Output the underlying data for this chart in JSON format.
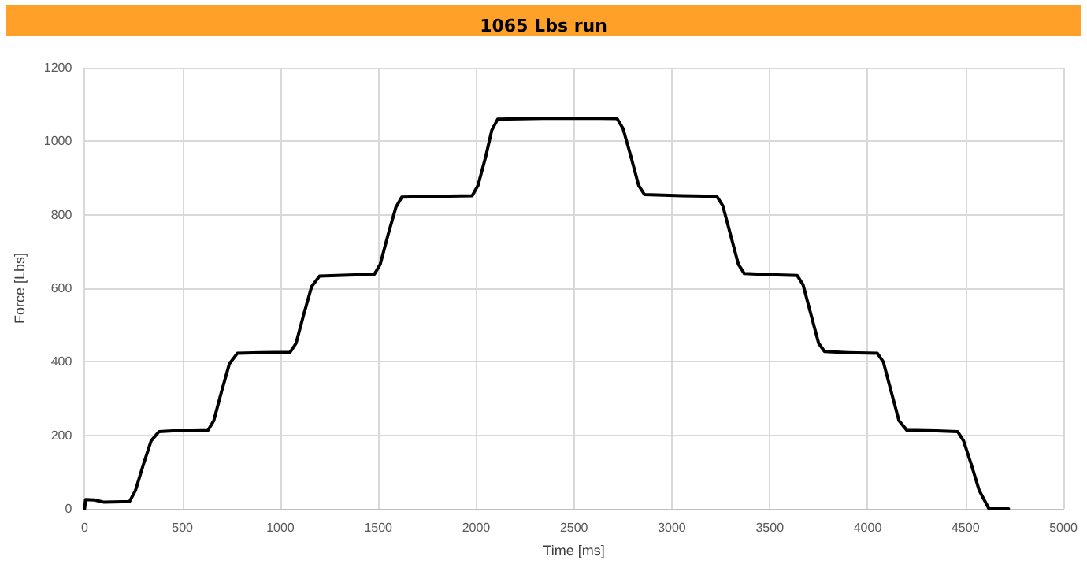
{
  "chart_data": {
    "type": "line",
    "title": "1065 Lbs run",
    "xlabel": "Time [ms]",
    "ylabel": "Force [Lbs]",
    "x": [
      0,
      5,
      50,
      100,
      150,
      230,
      260,
      300,
      340,
      380,
      450,
      550,
      630,
      660,
      700,
      740,
      780,
      900,
      1050,
      1080,
      1120,
      1160,
      1200,
      1350,
      1480,
      1510,
      1550,
      1590,
      1620,
      1800,
      1980,
      2010,
      2050,
      2080,
      2110,
      2400,
      2720,
      2750,
      2790,
      2830,
      2860,
      3050,
      3230,
      3260,
      3300,
      3340,
      3370,
      3500,
      3640,
      3670,
      3710,
      3750,
      3780,
      3900,
      4050,
      4080,
      4120,
      4160,
      4200,
      4350,
      4460,
      4490,
      4530,
      4570,
      4620,
      4720
    ],
    "series": [
      {
        "color": "#000000",
        "values": [
          0,
          25,
          24,
          18,
          19,
          20,
          50,
          120,
          185,
          210,
          212,
          212,
          213,
          240,
          320,
          395,
          423,
          425,
          426,
          450,
          530,
          605,
          633,
          636,
          638,
          665,
          745,
          820,
          848,
          850,
          852,
          880,
          960,
          1030,
          1060,
          1063,
          1062,
          1035,
          960,
          880,
          855,
          852,
          850,
          825,
          745,
          665,
          640,
          637,
          635,
          610,
          530,
          450,
          428,
          425,
          423,
          400,
          320,
          240,
          214,
          212,
          210,
          185,
          120,
          50,
          0,
          0
        ]
      }
    ],
    "xlim": [
      0,
      5000
    ],
    "xticks": [
      0,
      500,
      1000,
      1500,
      2000,
      2500,
      3000,
      3500,
      4000,
      4500,
      5000
    ],
    "ylim": [
      0,
      1200
    ],
    "yticks": [
      0,
      200,
      400,
      600,
      800,
      1000,
      1200
    ],
    "grid": true,
    "marker": "none",
    "line_style": "solid"
  }
}
